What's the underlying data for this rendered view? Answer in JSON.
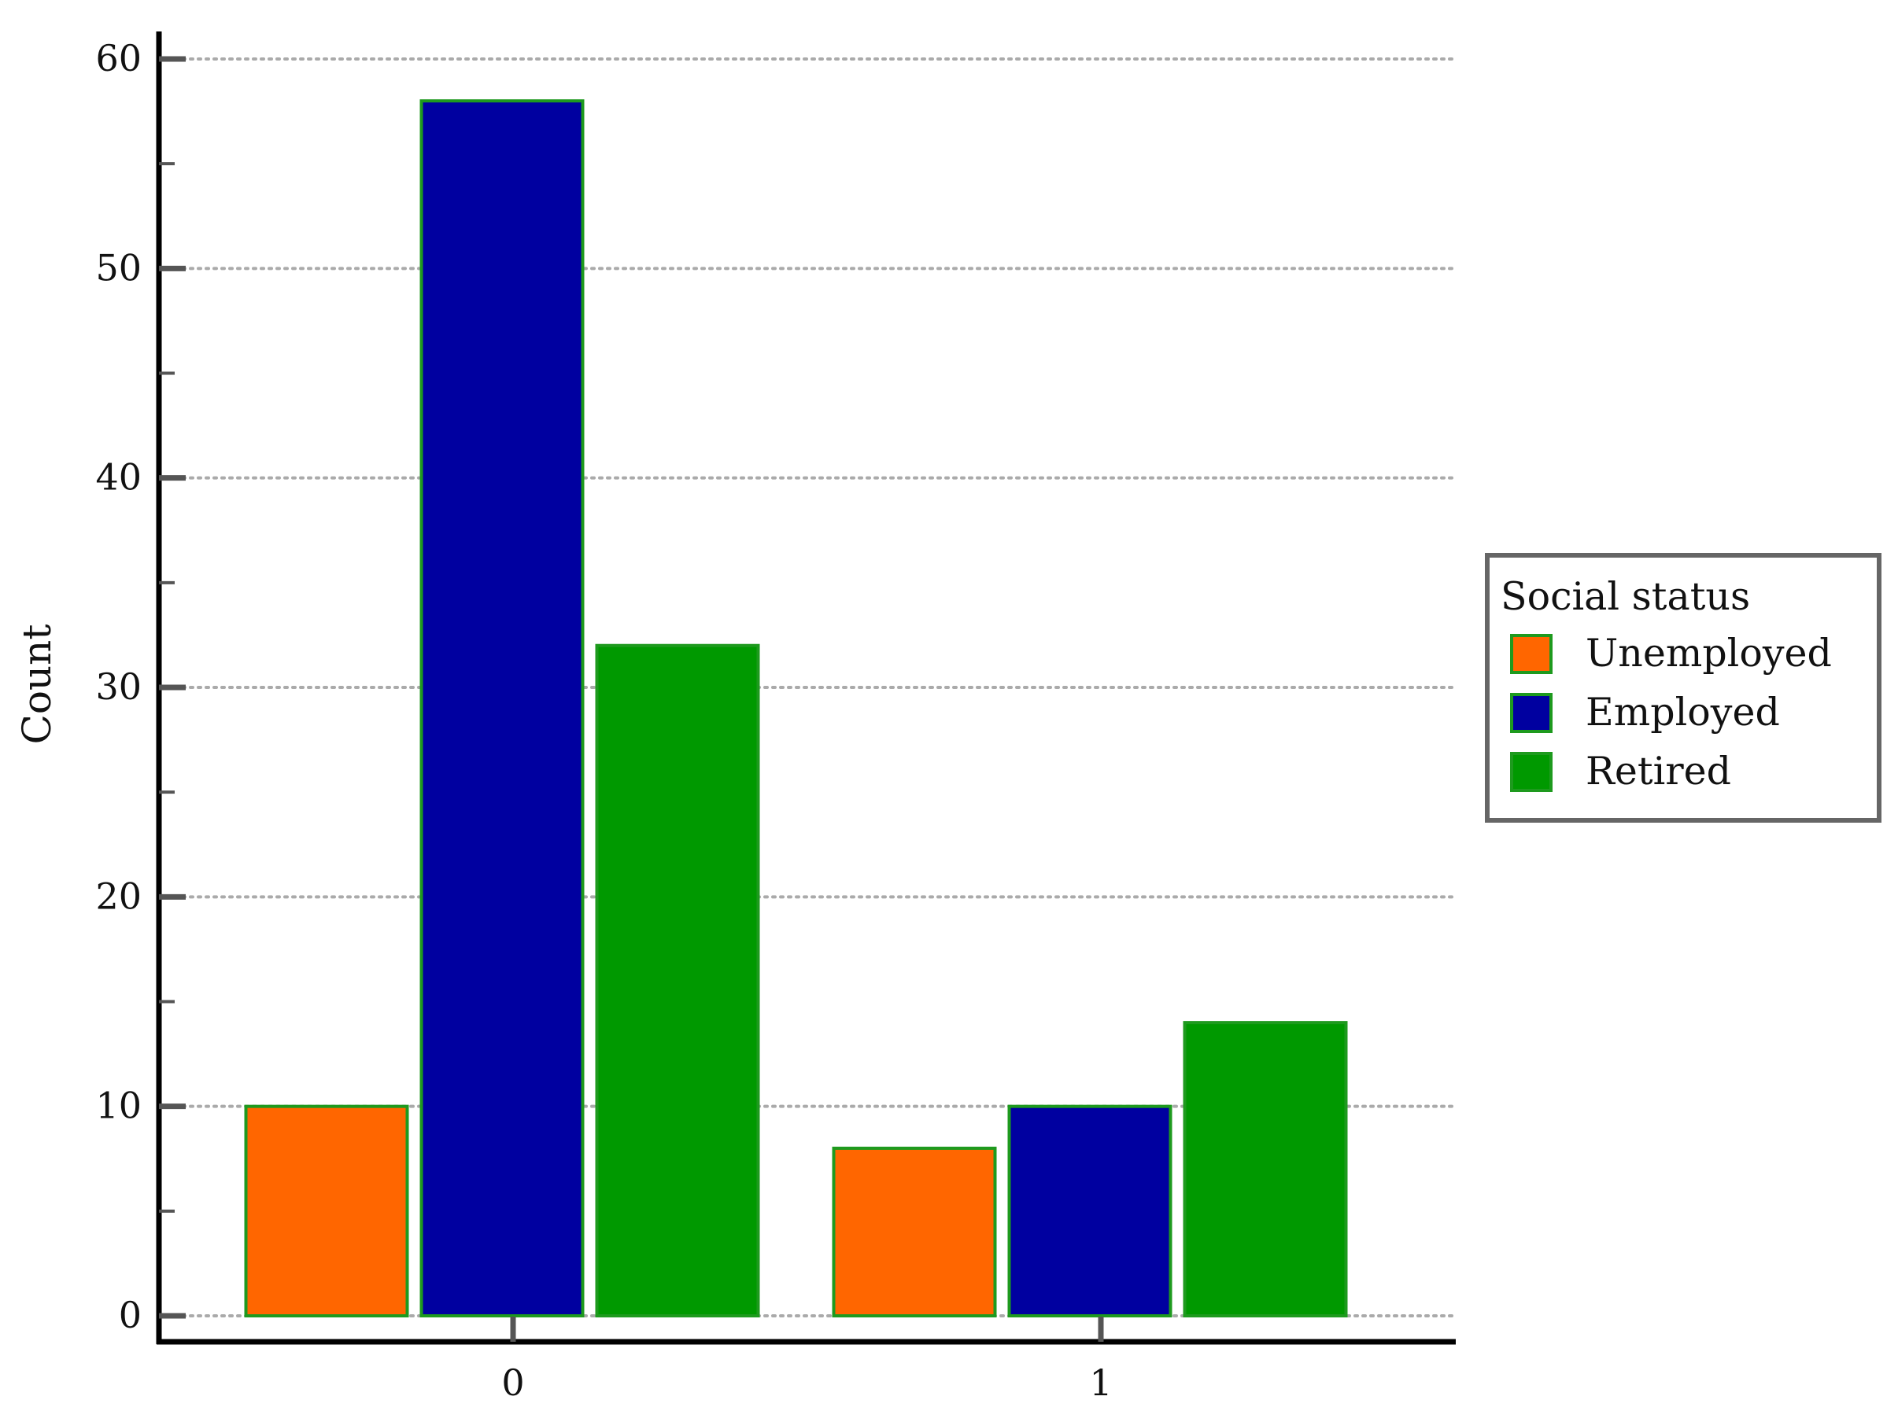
{
  "chart_data": {
    "type": "bar",
    "title": "",
    "xlabel": "",
    "ylabel": "Count",
    "categories": [
      "0",
      "1"
    ],
    "series": [
      {
        "name": "Unemployed",
        "color": "#FF6600",
        "values": [
          10,
          8
        ]
      },
      {
        "name": "Employed",
        "color": "#0000A0",
        "values": [
          58,
          10
        ]
      },
      {
        "name": "Retired",
        "color": "#009900",
        "values": [
          32,
          14
        ]
      }
    ],
    "bar_edge_color": "#1E9A1E",
    "ylim": [
      0,
      60
    ],
    "yticks": [
      "0",
      "10",
      "20",
      "30",
      "40",
      "50",
      "60"
    ],
    "grid": "horizontal dotted",
    "legend": {
      "title": "Social status",
      "placement": "right"
    }
  }
}
